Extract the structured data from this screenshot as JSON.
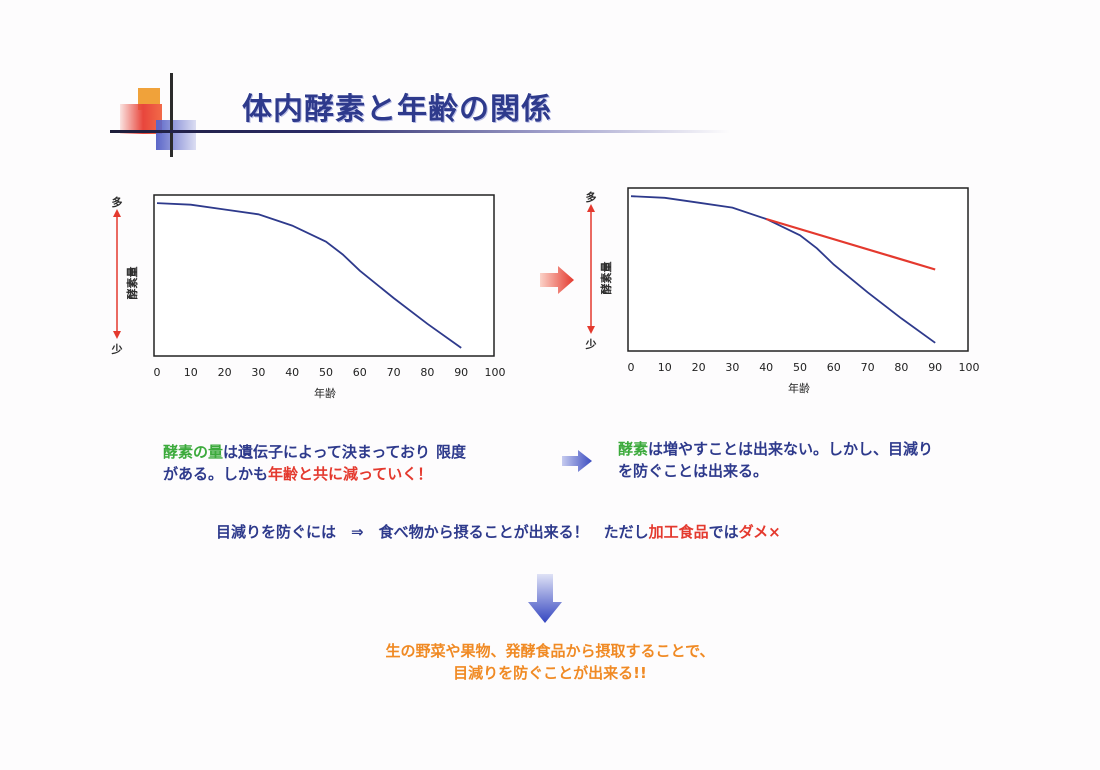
{
  "title": "体内酵素と年齢の関係",
  "charts": {
    "y_axis_label": "酵素量",
    "y_top_label": "多",
    "y_bottom_label": "少",
    "x_axis_label": "年齢",
    "x_ticks": [
      "0",
      "10",
      "20",
      "30",
      "40",
      "50",
      "60",
      "70",
      "80",
      "90",
      "100"
    ]
  },
  "chart_data": [
    {
      "type": "line",
      "xlabel": "年齢",
      "ylabel": "酵素量",
      "xlim": [
        0,
        100
      ],
      "series": [
        {
          "color": "#2e3a8c",
          "x": [
            0,
            10,
            20,
            30,
            40,
            50,
            55,
            60,
            70,
            80,
            90
          ],
          "y": [
            0.95,
            0.94,
            0.91,
            0.88,
            0.81,
            0.71,
            0.63,
            0.53,
            0.36,
            0.2,
            0.05
          ]
        }
      ]
    },
    {
      "type": "line",
      "xlabel": "年齢",
      "ylabel": "酵素量",
      "xlim": [
        0,
        100
      ],
      "series": [
        {
          "color": "#2e3a8c",
          "x": [
            0,
            10,
            20,
            30,
            40,
            50,
            55,
            60,
            70,
            80,
            90
          ],
          "y": [
            0.95,
            0.94,
            0.91,
            0.88,
            0.81,
            0.71,
            0.63,
            0.53,
            0.36,
            0.2,
            0.05
          ]
        },
        {
          "color": "#e4392e",
          "x": [
            40,
            90
          ],
          "y": [
            0.81,
            0.5
          ]
        }
      ]
    }
  ],
  "text": {
    "left_p1_green": "酵素の量",
    "left_p1_blue": "は遺伝子によって決まっており",
    "left_p1_red": "限度",
    "left_p2_blue1": "がある。しかも",
    "left_p2_red": "年齢と共に減っていく！",
    "right_p1_green": "酵素",
    "right_p1_blue": "は増やすことは出来ない。しかし、目減り",
    "right_p2_blue": "を防ぐことは出来る。",
    "mid_blue": "目減りを防ぐには　⇒　食べ物から摂ることが出来る！　ただし",
    "mid_red": "加工食品",
    "mid_blue2": "では",
    "mid_red2": "ダメ×",
    "bottom_line1": "生の野菜や果物、発酵食品から摂取することで、",
    "bottom_line2": "目減りを防ぐことが出来る!!"
  }
}
